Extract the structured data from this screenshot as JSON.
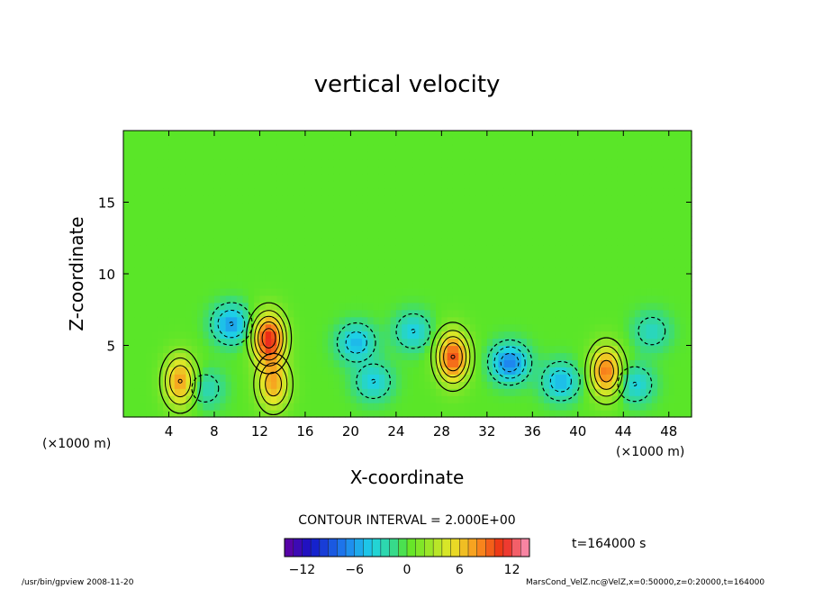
{
  "chart_data": {
    "type": "heatmap",
    "title": "vertical velocity",
    "xlabel": "X-coordinate",
    "ylabel": "Z-coordinate",
    "x_unit": "(×1000 m)",
    "z_unit": "(×1000 m)",
    "xlim": [
      0,
      50
    ],
    "ylim": [
      0,
      20
    ],
    "x_ticks": [
      4,
      8,
      12,
      16,
      20,
      24,
      28,
      32,
      36,
      40,
      44,
      48
    ],
    "y_ticks": [
      5,
      10,
      15
    ],
    "contour_interval_text": "CONTOUR INTERVAL = 2.000E+00",
    "time_text": "t=164000 s",
    "colorbar": {
      "range": [
        -14,
        14
      ],
      "ticks": [
        -12,
        -6,
        0,
        6,
        12
      ]
    },
    "features": [
      {
        "x": 5.0,
        "z": 2.5,
        "value": 8
      },
      {
        "x": 12.8,
        "z": 5.5,
        "value": 11
      },
      {
        "x": 13.2,
        "z": 2.3,
        "value": 7
      },
      {
        "x": 29.0,
        "z": 4.2,
        "value": 10
      },
      {
        "x": 42.5,
        "z": 3.2,
        "value": 9
      },
      {
        "x": 9.5,
        "z": 6.5,
        "value": -6
      },
      {
        "x": 7.2,
        "z": 2.0,
        "value": -3
      },
      {
        "x": 20.5,
        "z": 5.2,
        "value": -5
      },
      {
        "x": 22.0,
        "z": 2.5,
        "value": -4
      },
      {
        "x": 25.5,
        "z": 6.0,
        "value": -4
      },
      {
        "x": 34.0,
        "z": 3.8,
        "value": -7
      },
      {
        "x": 38.5,
        "z": 2.5,
        "value": -5
      },
      {
        "x": 45.0,
        "z": 2.3,
        "value": -4
      },
      {
        "x": 46.5,
        "z": 6.0,
        "value": -3
      }
    ]
  },
  "footer": {
    "left": "/usr/bin/gpview   2008-11-20",
    "right": "MarsCond_VelZ.nc@VelZ,x=0:50000,z=0:20000,t=164000"
  }
}
